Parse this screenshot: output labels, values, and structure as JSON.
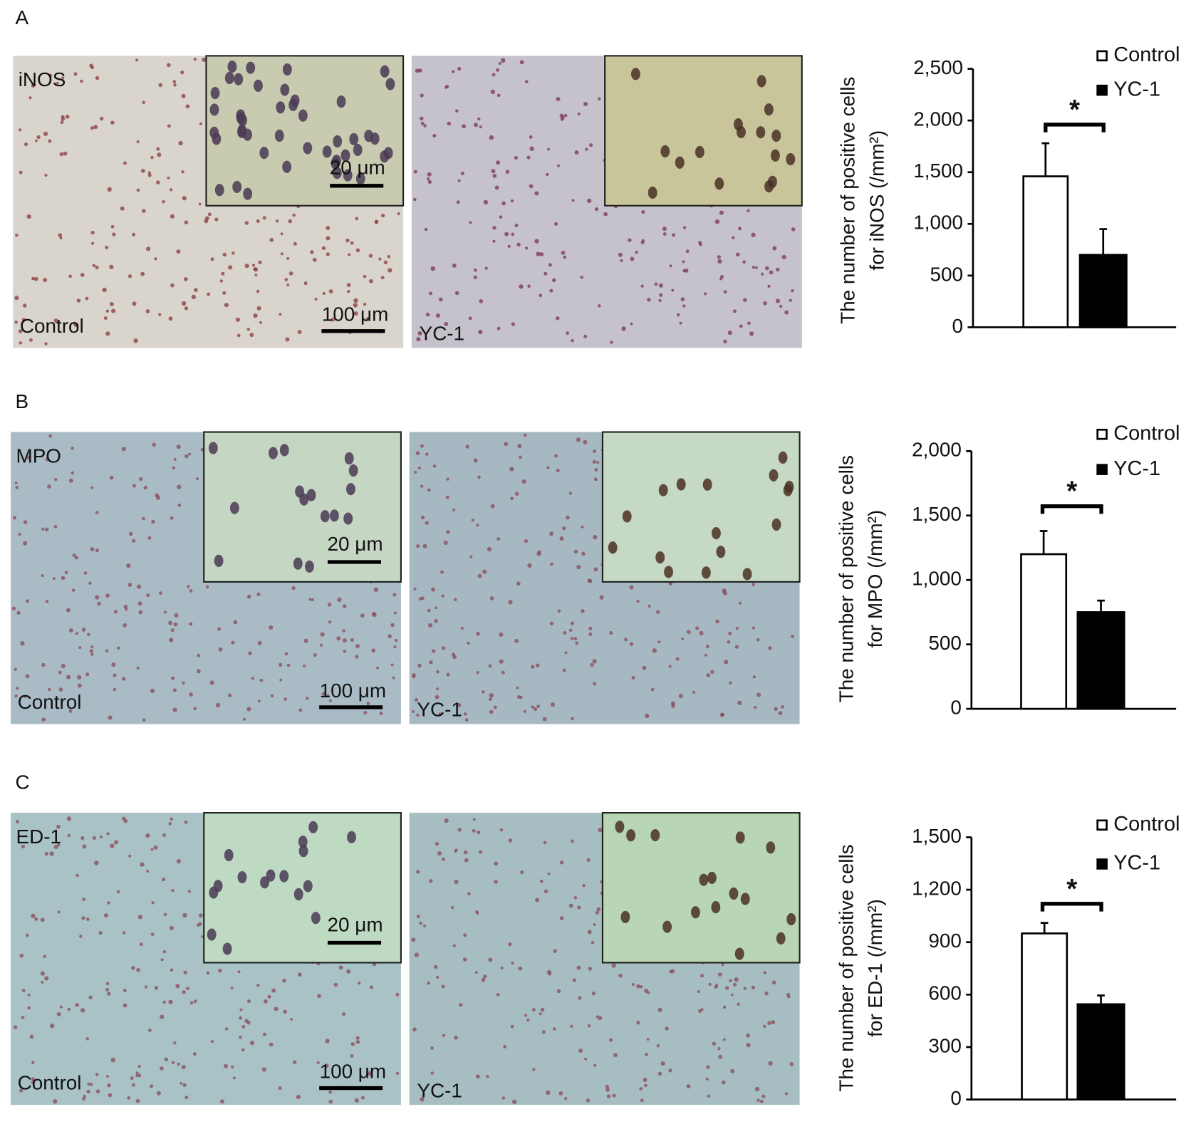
{
  "panels": [
    {
      "label": "A",
      "micrographs": [
        {
          "marker": "iNOS",
          "inset_scale": "20 μm",
          "scale": "100 μm",
          "group": "Control"
        },
        {
          "group": "YC-1"
        }
      ]
    },
    {
      "label": "B",
      "micrographs": [
        {
          "marker": "MPO",
          "inset_scale": "20 μm",
          "scale": "100 μm",
          "group": "Control"
        },
        {
          "group": "YC-1"
        }
      ]
    },
    {
      "label": "C",
      "micrographs": [
        {
          "marker": "ED-1",
          "inset_scale": "20 μm",
          "scale": "100 μm",
          "group": "Control"
        },
        {
          "group": "YC-1"
        }
      ]
    }
  ],
  "chart_data": [
    {
      "type": "bar",
      "ylabel": [
        "The number of positive cells",
        "for iNOS (/mm²)"
      ],
      "categories": [
        null
      ],
      "series": [
        {
          "name": "Control",
          "color": "#ffffff",
          "values": [
            1460
          ],
          "errors": [
            320
          ]
        },
        {
          "name": "YC-1",
          "color": "#000000",
          "values": [
            700
          ],
          "errors": [
            250
          ]
        }
      ],
      "ylim": [
        0,
        2500
      ],
      "yticks": [
        0,
        500,
        {
          "value": 1000,
          "label": "1,000"
        },
        {
          "value": 1500,
          "label": "1,500"
        },
        {
          "value": 2000,
          "label": "2,000"
        },
        {
          "value": 2500,
          "label": "2,500"
        }
      ],
      "annotation": "*"
    },
    {
      "type": "bar",
      "ylabel": [
        "The number of positive cells",
        "for MPO (/mm²)"
      ],
      "categories": [
        null
      ],
      "series": [
        {
          "name": "Control",
          "color": "#ffffff",
          "values": [
            1200
          ],
          "errors": [
            180
          ]
        },
        {
          "name": "YC-1",
          "color": "#000000",
          "values": [
            750
          ],
          "errors": [
            90
          ]
        }
      ],
      "ylim": [
        0,
        2000
      ],
      "yticks": [
        0,
        500,
        {
          "value": 1000,
          "label": "1,000"
        },
        {
          "value": 1500,
          "label": "1,500"
        },
        {
          "value": 2000,
          "label": "2,000"
        }
      ],
      "annotation": "*"
    },
    {
      "type": "bar",
      "ylabel": [
        "The number of positive cells",
        "for ED-1 (/mm²)"
      ],
      "categories": [
        null
      ],
      "series": [
        {
          "name": "Control",
          "color": "#ffffff",
          "values": [
            950
          ],
          "errors": [
            60
          ]
        },
        {
          "name": "YC-1",
          "color": "#000000",
          "values": [
            545
          ],
          "errors": [
            50
          ]
        }
      ],
      "ylim": [
        0,
        1500
      ],
      "yticks": [
        0,
        300,
        600,
        900,
        {
          "value": 1200,
          "label": "1,200"
        },
        {
          "value": 1500,
          "label": "1,500"
        }
      ],
      "annotation": "*"
    }
  ]
}
